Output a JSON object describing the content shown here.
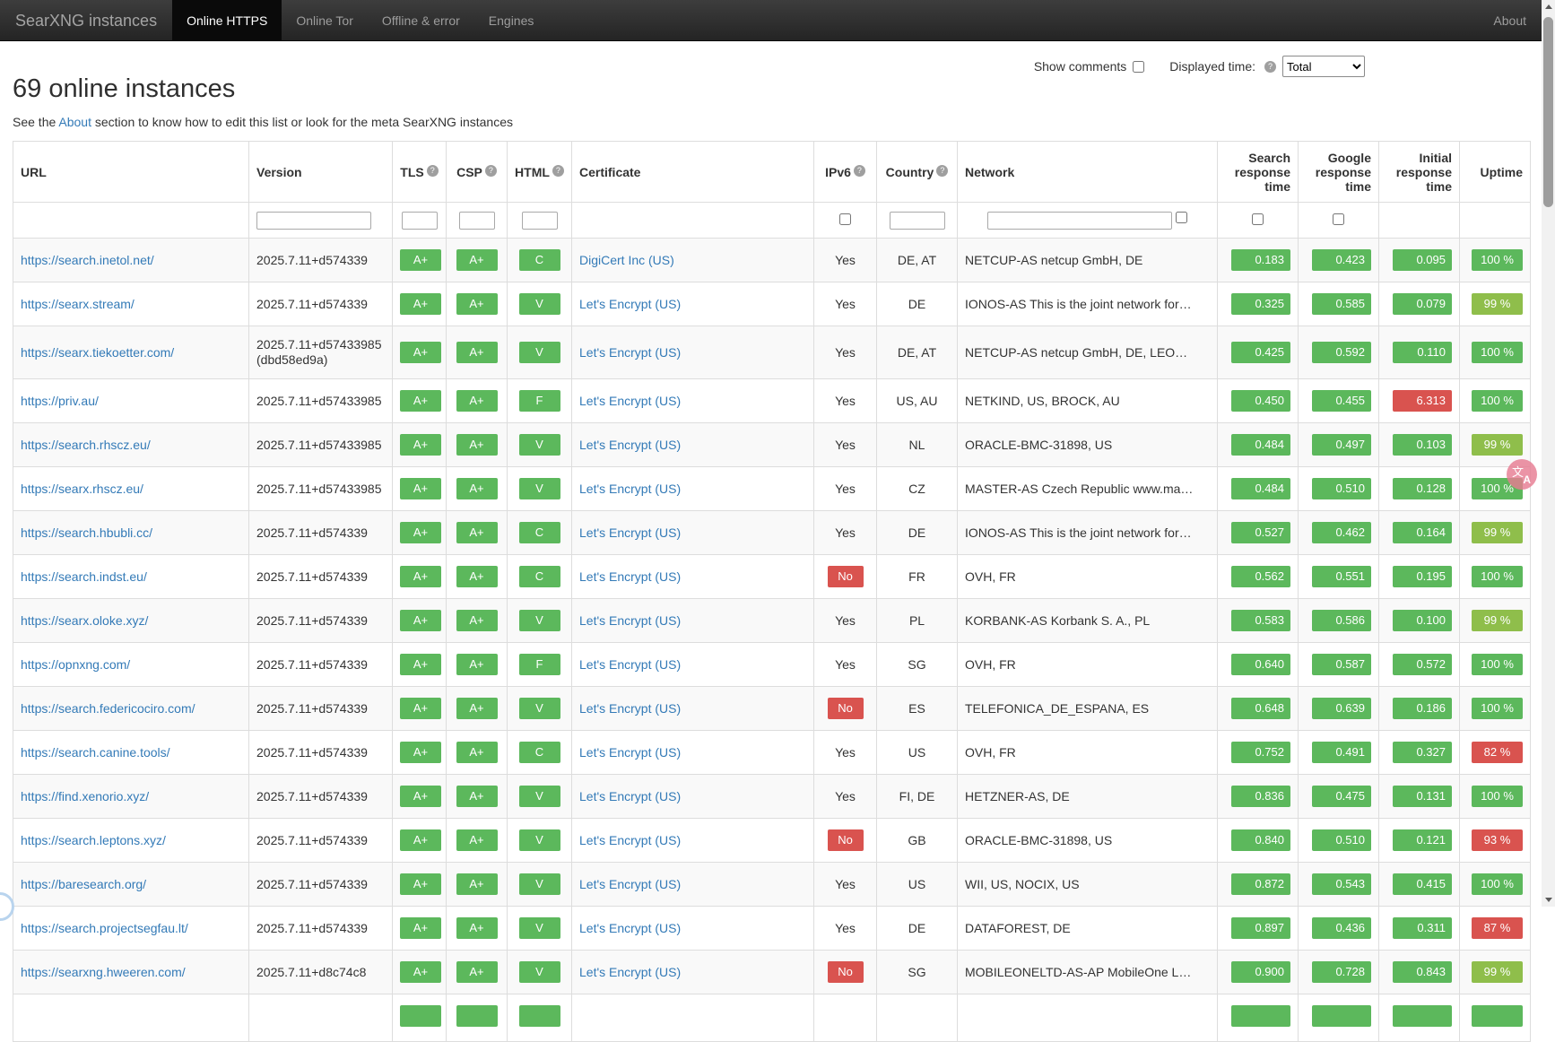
{
  "navbar": {
    "brand": "SearXNG instances",
    "tabs": [
      {
        "label": "Online HTTPS",
        "active": true
      },
      {
        "label": "Online Tor",
        "active": false
      },
      {
        "label": "Offline & error",
        "active": false
      },
      {
        "label": "Engines",
        "active": false
      }
    ],
    "about": "About"
  },
  "controls": {
    "show_comments_label": "Show comments",
    "displayed_time_label": "Displayed time:",
    "displayed_time_value": "Total",
    "displayed_time_options": [
      "Total"
    ]
  },
  "page": {
    "title": "69 online instances",
    "subtitle_prefix": "See the ",
    "subtitle_link": "About",
    "subtitle_suffix": " section to know how to edit this list or look for the meta SearXNG instances"
  },
  "colors": {
    "green": "#5cb85c",
    "lime": "#8fbe4b",
    "red": "#d9534f"
  },
  "table": {
    "columns": [
      {
        "id": "url",
        "label": "URL",
        "help": false,
        "align": "al",
        "filter": null
      },
      {
        "id": "version",
        "label": "Version",
        "help": false,
        "align": "al",
        "filter": "text"
      },
      {
        "id": "tls",
        "label": "TLS",
        "help": true,
        "align": "ac",
        "filter": "text"
      },
      {
        "id": "csp",
        "label": "CSP",
        "help": true,
        "align": "ac",
        "filter": "text"
      },
      {
        "id": "html",
        "label": "HTML",
        "help": true,
        "align": "ac",
        "filter": "text"
      },
      {
        "id": "certificate",
        "label": "Certificate",
        "help": false,
        "align": "al",
        "filter": null
      },
      {
        "id": "ipv6",
        "label": "IPv6",
        "help": true,
        "align": "ac",
        "filter": "checkbox"
      },
      {
        "id": "country",
        "label": "Country",
        "help": true,
        "align": "ac",
        "filter": "text"
      },
      {
        "id": "network",
        "label": "Network",
        "help": false,
        "align": "al",
        "filter": "text-checkbox"
      },
      {
        "id": "search_time",
        "label": "Search response time",
        "help": false,
        "align": "ar",
        "filter": "checkbox"
      },
      {
        "id": "google_time",
        "label": "Google response time",
        "help": false,
        "align": "ar",
        "filter": "checkbox"
      },
      {
        "id": "initial_time",
        "label": "Initial response time",
        "help": false,
        "align": "ar",
        "filter": null
      },
      {
        "id": "uptime",
        "label": "Uptime",
        "help": false,
        "align": "ar",
        "filter": null
      }
    ],
    "rows": [
      {
        "url": "https://search.inetol.net/",
        "version": [
          "2025.7.11+d574339"
        ],
        "tls": "A+",
        "csp": "A+",
        "html": "C",
        "certificate": "DigiCert Inc (US)",
        "ipv6": "Yes",
        "country": "DE, AT",
        "network": "NETCUP-AS netcup GmbH, DE",
        "search_time": {
          "value": "0.183",
          "color": "green"
        },
        "google_time": {
          "value": "0.423",
          "color": "green"
        },
        "initial_time": {
          "value": "0.095",
          "color": "green"
        },
        "uptime": {
          "value": "100 %",
          "color": "green"
        }
      },
      {
        "url": "https://searx.stream/",
        "version": [
          "2025.7.11+d574339"
        ],
        "tls": "A+",
        "csp": "A+",
        "html": "V",
        "certificate": "Let's Encrypt (US)",
        "ipv6": "Yes",
        "country": "DE",
        "network": "IONOS-AS This is the joint network for…",
        "search_time": {
          "value": "0.325",
          "color": "green"
        },
        "google_time": {
          "value": "0.585",
          "color": "green"
        },
        "initial_time": {
          "value": "0.079",
          "color": "green"
        },
        "uptime": {
          "value": "99 %",
          "color": "lime"
        }
      },
      {
        "url": "https://searx.tiekoetter.com/",
        "version": [
          "2025.7.11+d57433985",
          "(dbd58ed9a)"
        ],
        "tls": "A+",
        "csp": "A+",
        "html": "V",
        "certificate": "Let's Encrypt (US)",
        "ipv6": "Yes",
        "country": "DE, AT",
        "network": "NETCUP-AS netcup GmbH, DE, LEO…",
        "search_time": {
          "value": "0.425",
          "color": "green"
        },
        "google_time": {
          "value": "0.592",
          "color": "green"
        },
        "initial_time": {
          "value": "0.110",
          "color": "green"
        },
        "uptime": {
          "value": "100 %",
          "color": "green"
        }
      },
      {
        "url": "https://priv.au/",
        "version": [
          "2025.7.11+d57433985"
        ],
        "tls": "A+",
        "csp": "A+",
        "html": "F",
        "certificate": "Let's Encrypt (US)",
        "ipv6": "Yes",
        "country": "US, AU",
        "network": "NETKIND, US, BROCK, AU",
        "search_time": {
          "value": "0.450",
          "color": "green"
        },
        "google_time": {
          "value": "0.455",
          "color": "green"
        },
        "initial_time": {
          "value": "6.313",
          "color": "red"
        },
        "uptime": {
          "value": "100 %",
          "color": "green"
        }
      },
      {
        "url": "https://search.rhscz.eu/",
        "version": [
          "2025.7.11+d57433985"
        ],
        "tls": "A+",
        "csp": "A+",
        "html": "V",
        "certificate": "Let's Encrypt (US)",
        "ipv6": "Yes",
        "country": "NL",
        "network": "ORACLE-BMC-31898, US",
        "search_time": {
          "value": "0.484",
          "color": "green"
        },
        "google_time": {
          "value": "0.497",
          "color": "green"
        },
        "initial_time": {
          "value": "0.103",
          "color": "green"
        },
        "uptime": {
          "value": "99 %",
          "color": "lime"
        }
      },
      {
        "url": "https://searx.rhscz.eu/",
        "version": [
          "2025.7.11+d57433985"
        ],
        "tls": "A+",
        "csp": "A+",
        "html": "V",
        "certificate": "Let's Encrypt (US)",
        "ipv6": "Yes",
        "country": "CZ",
        "network": "MASTER-AS Czech Republic www.ma…",
        "search_time": {
          "value": "0.484",
          "color": "green"
        },
        "google_time": {
          "value": "0.510",
          "color": "green"
        },
        "initial_time": {
          "value": "0.128",
          "color": "green"
        },
        "uptime": {
          "value": "100 %",
          "color": "green"
        }
      },
      {
        "url": "https://search.hbubli.cc/",
        "version": [
          "2025.7.11+d574339"
        ],
        "tls": "A+",
        "csp": "A+",
        "html": "C",
        "certificate": "Let's Encrypt (US)",
        "ipv6": "Yes",
        "country": "DE",
        "network": "IONOS-AS This is the joint network for…",
        "search_time": {
          "value": "0.527",
          "color": "green"
        },
        "google_time": {
          "value": "0.462",
          "color": "green"
        },
        "initial_time": {
          "value": "0.164",
          "color": "green"
        },
        "uptime": {
          "value": "99 %",
          "color": "lime"
        }
      },
      {
        "url": "https://search.indst.eu/",
        "version": [
          "2025.7.11+d574339"
        ],
        "tls": "A+",
        "csp": "A+",
        "html": "C",
        "certificate": "Let's Encrypt (US)",
        "ipv6": "No",
        "country": "FR",
        "network": "OVH, FR",
        "search_time": {
          "value": "0.562",
          "color": "green"
        },
        "google_time": {
          "value": "0.551",
          "color": "green"
        },
        "initial_time": {
          "value": "0.195",
          "color": "green"
        },
        "uptime": {
          "value": "100 %",
          "color": "green"
        }
      },
      {
        "url": "https://searx.oloke.xyz/",
        "version": [
          "2025.7.11+d574339"
        ],
        "tls": "A+",
        "csp": "A+",
        "html": "V",
        "certificate": "Let's Encrypt (US)",
        "ipv6": "Yes",
        "country": "PL",
        "network": "KORBANK-AS Korbank S. A., PL",
        "search_time": {
          "value": "0.583",
          "color": "green"
        },
        "google_time": {
          "value": "0.586",
          "color": "green"
        },
        "initial_time": {
          "value": "0.100",
          "color": "green"
        },
        "uptime": {
          "value": "99 %",
          "color": "lime"
        }
      },
      {
        "url": "https://opnxng.com/",
        "version": [
          "2025.7.11+d574339"
        ],
        "tls": "A+",
        "csp": "A+",
        "html": "F",
        "certificate": "Let's Encrypt (US)",
        "ipv6": "Yes",
        "country": "SG",
        "network": "OVH, FR",
        "search_time": {
          "value": "0.640",
          "color": "green"
        },
        "google_time": {
          "value": "0.587",
          "color": "green"
        },
        "initial_time": {
          "value": "0.572",
          "color": "green"
        },
        "uptime": {
          "value": "100 %",
          "color": "green"
        }
      },
      {
        "url": "https://search.federicociro.com/",
        "version": [
          "2025.7.11+d574339"
        ],
        "tls": "A+",
        "csp": "A+",
        "html": "V",
        "certificate": "Let's Encrypt (US)",
        "ipv6": "No",
        "country": "ES",
        "network": "TELEFONICA_DE_ESPANA, ES",
        "search_time": {
          "value": "0.648",
          "color": "green"
        },
        "google_time": {
          "value": "0.639",
          "color": "green"
        },
        "initial_time": {
          "value": "0.186",
          "color": "green"
        },
        "uptime": {
          "value": "100 %",
          "color": "green"
        }
      },
      {
        "url": "https://search.canine.tools/",
        "version": [
          "2025.7.11+d574339"
        ],
        "tls": "A+",
        "csp": "A+",
        "html": "C",
        "certificate": "Let's Encrypt (US)",
        "ipv6": "Yes",
        "country": "US",
        "network": "OVH, FR",
        "search_time": {
          "value": "0.752",
          "color": "green"
        },
        "google_time": {
          "value": "0.491",
          "color": "green"
        },
        "initial_time": {
          "value": "0.327",
          "color": "green"
        },
        "uptime": {
          "value": "82 %",
          "color": "red"
        }
      },
      {
        "url": "https://find.xenorio.xyz/",
        "version": [
          "2025.7.11+d574339"
        ],
        "tls": "A+",
        "csp": "A+",
        "html": "V",
        "certificate": "Let's Encrypt (US)",
        "ipv6": "Yes",
        "country": "FI, DE",
        "network": "HETZNER-AS, DE",
        "search_time": {
          "value": "0.836",
          "color": "green"
        },
        "google_time": {
          "value": "0.475",
          "color": "green"
        },
        "initial_time": {
          "value": "0.131",
          "color": "green"
        },
        "uptime": {
          "value": "100 %",
          "color": "green"
        }
      },
      {
        "url": "https://search.leptons.xyz/",
        "version": [
          "2025.7.11+d574339"
        ],
        "tls": "A+",
        "csp": "A+",
        "html": "V",
        "certificate": "Let's Encrypt (US)",
        "ipv6": "No",
        "country": "GB",
        "network": "ORACLE-BMC-31898, US",
        "search_time": {
          "value": "0.840",
          "color": "green"
        },
        "google_time": {
          "value": "0.510",
          "color": "green"
        },
        "initial_time": {
          "value": "0.121",
          "color": "green"
        },
        "uptime": {
          "value": "93 %",
          "color": "red"
        }
      },
      {
        "url": "https://baresearch.org/",
        "version": [
          "2025.7.11+d574339"
        ],
        "tls": "A+",
        "csp": "A+",
        "html": "V",
        "certificate": "Let's Encrypt (US)",
        "ipv6": "Yes",
        "country": "US",
        "network": "WII, US, NOCIX, US",
        "search_time": {
          "value": "0.872",
          "color": "green"
        },
        "google_time": {
          "value": "0.543",
          "color": "green"
        },
        "initial_time": {
          "value": "0.415",
          "color": "green"
        },
        "uptime": {
          "value": "100 %",
          "color": "green"
        }
      },
      {
        "url": "https://search.projectsegfau.lt/",
        "version": [
          "2025.7.11+d574339"
        ],
        "tls": "A+",
        "csp": "A+",
        "html": "V",
        "certificate": "Let's Encrypt (US)",
        "ipv6": "Yes",
        "country": "DE",
        "network": "DATAFOREST, DE",
        "search_time": {
          "value": "0.897",
          "color": "green"
        },
        "google_time": {
          "value": "0.436",
          "color": "green"
        },
        "initial_time": {
          "value": "0.311",
          "color": "green"
        },
        "uptime": {
          "value": "87 %",
          "color": "red"
        }
      },
      {
        "url": "https://searxng.hweeren.com/",
        "version": [
          "2025.7.11+d8c74c8"
        ],
        "tls": "A+",
        "csp": "A+",
        "html": "V",
        "certificate": "Let's Encrypt (US)",
        "ipv6": "No",
        "country": "SG",
        "network": "MOBILEONELTD-AS-AP MobileOne L…",
        "search_time": {
          "value": "0.900",
          "color": "green"
        },
        "google_time": {
          "value": "0.728",
          "color": "green"
        },
        "initial_time": {
          "value": "0.843",
          "color": "green"
        },
        "uptime": {
          "value": "99 %",
          "color": "lime"
        }
      },
      {
        "partial": true,
        "tls": "",
        "csp": "",
        "html": "",
        "search_time": {
          "value": "",
          "color": "green"
        },
        "google_time": {
          "value": "",
          "color": "green"
        },
        "initial_time": {
          "value": "",
          "color": "green"
        },
        "uptime": {
          "value": "",
          "color": "green"
        }
      }
    ]
  },
  "overlays": {
    "translate_button_zh": "文",
    "translate_button_en": "A"
  }
}
